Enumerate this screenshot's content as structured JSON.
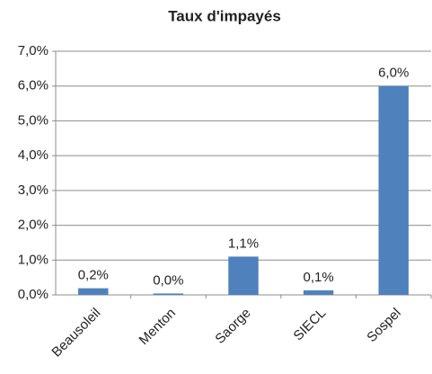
{
  "chart_data": {
    "type": "bar",
    "title": "Taux d'impayés",
    "categories": [
      "Beausoleil",
      "Menton",
      "Saorge",
      "SIECL",
      "Sospel"
    ],
    "values": [
      0.19,
      0.04,
      1.1,
      0.13,
      6.0
    ],
    "value_labels": [
      "0,2%",
      "0,0%",
      "1,1%",
      "0,1%",
      "6,0%"
    ],
    "color": "#4f81bd",
    "ylim": [
      0,
      7
    ],
    "yticks": [
      {
        "value": 0,
        "label": "0,0%"
      },
      {
        "value": 1,
        "label": "1,0%"
      },
      {
        "value": 2,
        "label": "2,0%"
      },
      {
        "value": 3,
        "label": "3,0%"
      },
      {
        "value": 4,
        "label": "4,0%"
      },
      {
        "value": 5,
        "label": "5,0%"
      },
      {
        "value": 6,
        "label": "6,0%"
      },
      {
        "value": 7,
        "label": "7,0%"
      }
    ],
    "grid": true
  }
}
